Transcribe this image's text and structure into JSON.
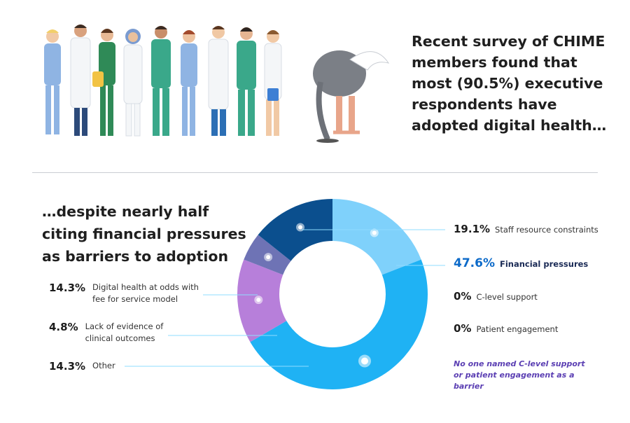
{
  "headline": "Recent survey of CHIME members found that most (90.5%) executive respondents have adopted digital health…",
  "subheadline": "…despite nearly half citing financial pressures as barriers to adoption",
  "note": "No one named C-level support or patient engagement as a barrier",
  "colors": {
    "staff": "#7fd1fb",
    "financial": "#1fb2f4",
    "fee_for_service": "#0b4f8e",
    "evidence": "#6e73b5",
    "other": "#b77fda",
    "top_blue": "#2f86d8",
    "highlight_text": "#0c6ac9",
    "note_text": "#5b3fb3"
  },
  "chart_data": {
    "type": "pie",
    "labels": [
      "Staff resource constraints",
      "Financial pressures",
      "C-level support",
      "Patient engagement",
      "Other",
      "Lack of evidence of clinical outcomes",
      "Digital health at odds with fee for service model"
    ],
    "values": [
      19.1,
      47.6,
      0,
      0,
      14.3,
      4.8,
      14.3
    ],
    "value_labels": [
      "19.1%",
      "47.6%",
      "0%",
      "0%",
      "14.3%",
      "4.8%",
      "14.3%"
    ],
    "donut": true
  },
  "legend_left": [
    {
      "pct": "14.3%",
      "label": "Digital health at odds with fee for service model"
    },
    {
      "pct": "4.8%",
      "label": "Lack of evidence of clinical outcomes"
    },
    {
      "pct": "14.3%",
      "label": "Other"
    }
  ],
  "legend_right": [
    {
      "pct": "19.1%",
      "label": "Staff resource constraints"
    },
    {
      "pct": "47.6%",
      "label": "Financial pressures"
    },
    {
      "pct": "0%",
      "label": "C-level support"
    },
    {
      "pct": "0%",
      "label": "Patient engagement"
    }
  ]
}
